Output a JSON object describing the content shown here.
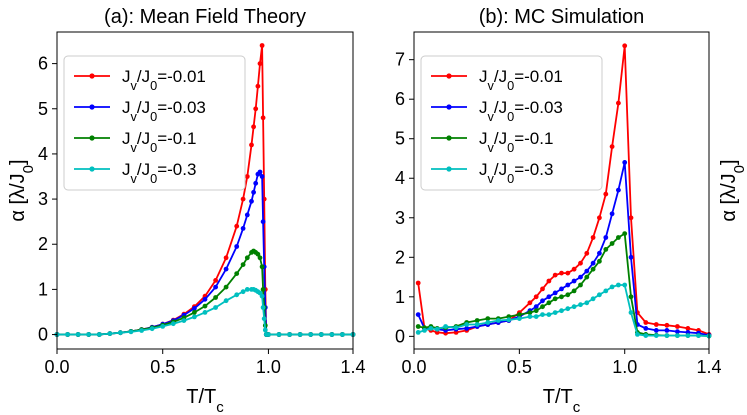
{
  "chart_data": [
    {
      "type": "line",
      "title": "(a): Mean Field Theory",
      "xlabel": "T/T",
      "xlabel_sub": "c",
      "ylabel": "α [λ/J",
      "ylabel_sub": "0",
      "ylabel_end": "]",
      "xlim": [
        0.0,
        1.4
      ],
      "ylim": [
        -0.32,
        6.7
      ],
      "xticks": [
        "0.0",
        "0.5",
        "1.0",
        "1.4"
      ],
      "xtick_values": [
        0.0,
        0.5,
        1.0,
        1.4
      ],
      "yticks": [
        "0",
        "1",
        "2",
        "3",
        "4",
        "5",
        "6"
      ],
      "ytick_values": [
        0,
        1,
        2,
        3,
        4,
        5,
        6
      ],
      "legend_position": "upper-left",
      "series": [
        {
          "name": "J",
          "name_sub": "v",
          "name_mid": "/J",
          "name_sub2": "0",
          "name_end": "=-0.01",
          "color": "#ff0000",
          "x": [
            0.0,
            0.05,
            0.1,
            0.15,
            0.2,
            0.25,
            0.3,
            0.35,
            0.4,
            0.45,
            0.5,
            0.55,
            0.6,
            0.65,
            0.7,
            0.75,
            0.8,
            0.85,
            0.88,
            0.9,
            0.92,
            0.93,
            0.94,
            0.95,
            0.96,
            0.97,
            0.975,
            0.98,
            0.985,
            0.99,
            1.0,
            1.05,
            1.1,
            1.15,
            1.2,
            1.25,
            1.3,
            1.35,
            1.4
          ],
          "y": [
            0,
            0,
            0,
            0,
            0,
            0.02,
            0.04,
            0.07,
            0.11,
            0.16,
            0.23,
            0.32,
            0.45,
            0.62,
            0.85,
            1.2,
            1.7,
            2.4,
            3.0,
            3.5,
            4.2,
            4.6,
            5.0,
            5.5,
            6.0,
            6.4,
            4.8,
            3.0,
            1.0,
            0.0,
            0,
            0,
            0,
            0,
            0,
            0,
            0,
            0,
            0
          ]
        },
        {
          "name": "J",
          "name_sub": "v",
          "name_mid": "/J",
          "name_sub2": "0",
          "name_end": "=-0.03",
          "color": "#0000ff",
          "x": [
            0.0,
            0.05,
            0.1,
            0.15,
            0.2,
            0.25,
            0.3,
            0.35,
            0.4,
            0.45,
            0.5,
            0.55,
            0.6,
            0.65,
            0.7,
            0.75,
            0.8,
            0.85,
            0.88,
            0.9,
            0.92,
            0.93,
            0.94,
            0.95,
            0.96,
            0.97,
            0.975,
            0.98,
            0.985,
            0.99,
            1.0,
            1.05,
            1.1,
            1.15,
            1.2,
            1.25,
            1.3,
            1.35,
            1.4
          ],
          "y": [
            0,
            0,
            0,
            0,
            0,
            0.02,
            0.04,
            0.07,
            0.11,
            0.16,
            0.23,
            0.31,
            0.43,
            0.58,
            0.78,
            1.05,
            1.45,
            1.95,
            2.35,
            2.65,
            2.95,
            3.15,
            3.35,
            3.55,
            3.6,
            3.5,
            2.5,
            1.5,
            0.6,
            0.0,
            0,
            0,
            0,
            0,
            0,
            0,
            0,
            0,
            0
          ]
        },
        {
          "name": "J",
          "name_sub": "v",
          "name_mid": "/J",
          "name_sub2": "0",
          "name_end": "=-0.1",
          "color": "#008000",
          "x": [
            0.0,
            0.05,
            0.1,
            0.15,
            0.2,
            0.25,
            0.3,
            0.35,
            0.4,
            0.45,
            0.5,
            0.55,
            0.6,
            0.65,
            0.7,
            0.75,
            0.8,
            0.85,
            0.88,
            0.9,
            0.92,
            0.93,
            0.94,
            0.95,
            0.96,
            0.97,
            0.975,
            0.98,
            0.985,
            0.99,
            1.0,
            1.05,
            1.1,
            1.15,
            1.2,
            1.25,
            1.3,
            1.35,
            1.4
          ],
          "y": [
            0,
            0,
            0,
            0,
            0,
            0.02,
            0.04,
            0.07,
            0.11,
            0.15,
            0.21,
            0.28,
            0.37,
            0.49,
            0.63,
            0.82,
            1.05,
            1.35,
            1.55,
            1.7,
            1.82,
            1.85,
            1.82,
            1.78,
            1.7,
            1.5,
            1.0,
            0.6,
            0.2,
            0.0,
            0,
            0,
            0,
            0,
            0,
            0,
            0,
            0,
            0
          ]
        },
        {
          "name": "J",
          "name_sub": "v",
          "name_mid": "/J",
          "name_sub2": "0",
          "name_end": "=-0.3",
          "color": "#00bfbf",
          "x": [
            0.0,
            0.05,
            0.1,
            0.15,
            0.2,
            0.25,
            0.3,
            0.35,
            0.4,
            0.45,
            0.5,
            0.55,
            0.6,
            0.65,
            0.7,
            0.75,
            0.8,
            0.85,
            0.88,
            0.9,
            0.92,
            0.93,
            0.94,
            0.95,
            0.96,
            0.97,
            0.975,
            0.98,
            0.985,
            0.99,
            1.0,
            1.05,
            1.1,
            1.15,
            1.2,
            1.25,
            1.3,
            1.35,
            1.4
          ],
          "y": [
            0,
            0,
            0,
            0,
            0,
            0.02,
            0.04,
            0.06,
            0.09,
            0.13,
            0.18,
            0.24,
            0.31,
            0.39,
            0.49,
            0.6,
            0.75,
            0.88,
            0.95,
            1.0,
            1.0,
            1.0,
            0.98,
            0.95,
            0.92,
            0.85,
            0.6,
            0.35,
            0.1,
            0.0,
            0,
            0,
            0,
            0,
            0,
            0,
            0,
            0,
            0
          ]
        }
      ]
    },
    {
      "type": "line",
      "title": "(b): MC Simulation",
      "xlabel": "T/T",
      "xlabel_sub": "c",
      "ylabel": "α [λ/J",
      "ylabel_sub": "0",
      "ylabel_end": "]",
      "xlim": [
        0.0,
        1.4
      ],
      "ylim": [
        -0.32,
        7.7
      ],
      "xticks": [
        "0.0",
        "0.5",
        "1.0",
        "1.4"
      ],
      "xtick_values": [
        0.0,
        0.5,
        1.0,
        1.4
      ],
      "yticks": [
        "0",
        "1",
        "2",
        "3",
        "4",
        "5",
        "6",
        "7"
      ],
      "ytick_values": [
        0,
        1,
        2,
        3,
        4,
        5,
        6,
        7
      ],
      "legend_position": "upper-left",
      "series": [
        {
          "name": "J",
          "name_sub": "v",
          "name_mid": "/J",
          "name_sub2": "0",
          "name_end": "=-0.01",
          "color": "#ff0000",
          "x": [
            0.02,
            0.05,
            0.08,
            0.11,
            0.15,
            0.2,
            0.25,
            0.3,
            0.35,
            0.4,
            0.45,
            0.5,
            0.55,
            0.58,
            0.61,
            0.64,
            0.67,
            0.7,
            0.73,
            0.76,
            0.79,
            0.82,
            0.85,
            0.88,
            0.91,
            0.94,
            0.97,
            1.0,
            1.03,
            1.06,
            1.1,
            1.15,
            1.2,
            1.25,
            1.3,
            1.35,
            1.4
          ],
          "y": [
            1.35,
            0.2,
            0.15,
            0.1,
            0.08,
            0.1,
            0.15,
            0.25,
            0.3,
            0.35,
            0.4,
            0.6,
            0.85,
            1.0,
            1.2,
            1.4,
            1.55,
            1.6,
            1.6,
            1.7,
            1.85,
            2.1,
            2.5,
            3.0,
            3.6,
            4.8,
            5.9,
            7.35,
            3.0,
            0.6,
            0.35,
            0.3,
            0.28,
            0.25,
            0.2,
            0.15,
            0.05
          ]
        },
        {
          "name": "J",
          "name_sub": "v",
          "name_mid": "/J",
          "name_sub2": "0",
          "name_end": "=-0.03",
          "color": "#0000ff",
          "x": [
            0.02,
            0.05,
            0.08,
            0.11,
            0.15,
            0.2,
            0.25,
            0.3,
            0.35,
            0.4,
            0.45,
            0.5,
            0.55,
            0.58,
            0.61,
            0.64,
            0.67,
            0.7,
            0.73,
            0.76,
            0.79,
            0.82,
            0.85,
            0.88,
            0.91,
            0.94,
            0.97,
            1.0,
            1.03,
            1.06,
            1.1,
            1.15,
            1.2,
            1.25,
            1.3,
            1.35,
            1.4
          ],
          "y": [
            0.55,
            0.2,
            0.22,
            0.18,
            0.15,
            0.18,
            0.2,
            0.25,
            0.3,
            0.35,
            0.4,
            0.5,
            0.65,
            0.75,
            0.9,
            1.0,
            1.1,
            1.2,
            1.3,
            1.4,
            1.5,
            1.65,
            1.85,
            2.1,
            2.5,
            3.1,
            3.7,
            4.4,
            2.0,
            0.3,
            0.2,
            0.15,
            0.15,
            0.12,
            0.1,
            0.08,
            0.03
          ]
        },
        {
          "name": "J",
          "name_sub": "v",
          "name_mid": "/J",
          "name_sub2": "0",
          "name_end": "=-0.1",
          "color": "#008000",
          "x": [
            0.02,
            0.05,
            0.08,
            0.11,
            0.15,
            0.2,
            0.25,
            0.3,
            0.35,
            0.4,
            0.45,
            0.5,
            0.55,
            0.58,
            0.61,
            0.64,
            0.67,
            0.7,
            0.73,
            0.76,
            0.79,
            0.82,
            0.85,
            0.88,
            0.91,
            0.94,
            0.97,
            1.0,
            1.03,
            1.06,
            1.1,
            1.15,
            1.2,
            1.25,
            1.3,
            1.35,
            1.4
          ],
          "y": [
            0.25,
            0.22,
            0.25,
            0.2,
            0.22,
            0.25,
            0.35,
            0.4,
            0.45,
            0.45,
            0.5,
            0.55,
            0.6,
            0.65,
            0.75,
            0.85,
            0.95,
            1.0,
            1.05,
            1.15,
            1.3,
            1.5,
            1.7,
            1.9,
            2.2,
            2.35,
            2.5,
            2.6,
            1.0,
            0.1,
            0.05,
            0.03,
            0.02,
            0.02,
            0.02,
            0.02,
            0.01
          ]
        },
        {
          "name": "J",
          "name_sub": "v",
          "name_mid": "/J",
          "name_sub2": "0",
          "name_end": "=-0.3",
          "color": "#00bfbf",
          "x": [
            0.02,
            0.05,
            0.08,
            0.11,
            0.15,
            0.2,
            0.25,
            0.3,
            0.35,
            0.4,
            0.45,
            0.5,
            0.55,
            0.58,
            0.61,
            0.64,
            0.67,
            0.7,
            0.73,
            0.76,
            0.79,
            0.82,
            0.85,
            0.88,
            0.91,
            0.94,
            0.97,
            1.0,
            1.03,
            1.06,
            1.1,
            1.15,
            1.2,
            1.25,
            1.3,
            1.35,
            1.4
          ],
          "y": [
            0.1,
            0.15,
            0.2,
            0.18,
            0.25,
            0.22,
            0.3,
            0.3,
            0.35,
            0.4,
            0.42,
            0.45,
            0.5,
            0.5,
            0.55,
            0.55,
            0.6,
            0.65,
            0.7,
            0.75,
            0.8,
            0.85,
            0.95,
            1.05,
            1.15,
            1.25,
            1.3,
            1.3,
            0.6,
            0.05,
            0.02,
            0.02,
            0.02,
            0.02,
            0.02,
            0.02,
            0.01
          ]
        }
      ]
    }
  ]
}
